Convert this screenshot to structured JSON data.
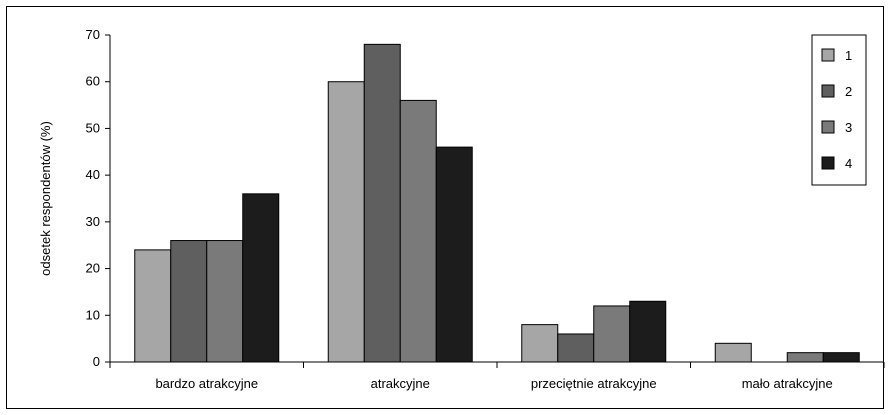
{
  "chart_data": {
    "type": "bar",
    "title": "",
    "xlabel": "",
    "ylabel": "odsetek respondentów (%)",
    "ylim": [
      0,
      70
    ],
    "yticks": [
      "0",
      "10",
      "20",
      "30",
      "40",
      "50",
      "60",
      "70"
    ],
    "grid": false,
    "legend_position": "top-right",
    "categories": [
      "bardzo atrakcyjne",
      "atrakcyjne",
      "przeciętnie atrakcyjne",
      "mało atrakcyjne"
    ],
    "series": [
      {
        "name": "1",
        "color": "#a6a6a6",
        "values": [
          24,
          60,
          8,
          4
        ]
      },
      {
        "name": "2",
        "color": "#5f5f5f",
        "values": [
          26,
          68,
          6,
          0
        ]
      },
      {
        "name": "3",
        "color": "#7a7a7a",
        "values": [
          26,
          56,
          12,
          2
        ]
      },
      {
        "name": "4",
        "color": "#1c1c1c",
        "values": [
          36,
          46,
          13,
          2
        ]
      }
    ]
  }
}
